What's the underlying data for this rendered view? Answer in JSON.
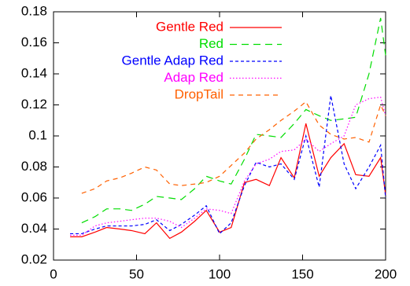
{
  "chart_data": {
    "type": "line",
    "x": [
      10,
      17,
      25,
      32,
      40,
      47,
      55,
      62,
      70,
      77,
      85,
      92,
      100,
      107,
      115,
      122,
      130,
      137,
      145,
      152,
      160,
      167,
      175,
      182,
      190,
      197,
      200
    ],
    "series": [
      {
        "name": "Gentle Red",
        "color": "#ff0000",
        "dash": "none",
        "values": [
          0.035,
          0.035,
          0.038,
          0.041,
          0.04,
          0.039,
          0.037,
          0.044,
          0.034,
          0.038,
          0.045,
          0.052,
          0.038,
          0.041,
          0.07,
          0.072,
          0.068,
          0.086,
          0.073,
          0.108,
          0.074,
          0.086,
          0.095,
          0.075,
          0.074,
          0.086,
          0.062
        ]
      },
      {
        "name": "Red",
        "color": "#00dd00",
        "dash": "9,6",
        "values": [
          null,
          0.044,
          0.048,
          0.053,
          0.053,
          0.052,
          0.056,
          0.061,
          0.06,
          0.059,
          0.066,
          0.074,
          0.071,
          0.069,
          0.085,
          0.101,
          0.1,
          0.099,
          0.108,
          0.117,
          0.113,
          0.11,
          0.111,
          0.112,
          0.14,
          0.176,
          0.152
        ]
      },
      {
        "name": "Gentle Adap Red",
        "color": "#0000ff",
        "dash": "4,3",
        "values": [
          0.037,
          0.037,
          0.04,
          0.042,
          0.042,
          0.042,
          0.043,
          0.046,
          0.039,
          0.043,
          0.049,
          0.055,
          0.037,
          0.044,
          0.068,
          0.083,
          0.08,
          0.082,
          0.072,
          0.1,
          0.067,
          0.126,
          0.082,
          0.066,
          0.08,
          0.094,
          0.06
        ]
      },
      {
        "name": "Adap Red",
        "color": "#ff00ff",
        "dash": "1.5,2.5",
        "values": [
          0.036,
          0.036,
          0.042,
          0.044,
          0.045,
          0.046,
          0.047,
          0.047,
          0.045,
          0.041,
          0.047,
          0.053,
          0.052,
          0.05,
          0.071,
          0.082,
          0.085,
          0.09,
          0.091,
          0.098,
          0.09,
          0.095,
          0.1,
          0.12,
          0.124,
          0.125,
          0.113
        ]
      },
      {
        "name": "DropTail",
        "color": "#ff6000",
        "dash": "6,5",
        "values": [
          null,
          0.063,
          0.066,
          0.071,
          0.073,
          0.076,
          0.08,
          0.078,
          0.069,
          0.068,
          0.069,
          0.07,
          0.074,
          0.081,
          0.089,
          0.098,
          0.104,
          0.11,
          0.116,
          0.122,
          0.107,
          0.101,
          0.098,
          0.099,
          0.096,
          0.12,
          0.113
        ]
      }
    ],
    "xlim": [
      0,
      200
    ],
    "xticks": [
      0,
      50,
      100,
      150,
      200
    ],
    "ylim": [
      0.02,
      0.18
    ],
    "yticks": [
      0.02,
      0.04,
      0.06,
      0.08,
      0.1,
      0.12,
      0.14,
      0.16,
      0.18
    ],
    "grid": false
  }
}
